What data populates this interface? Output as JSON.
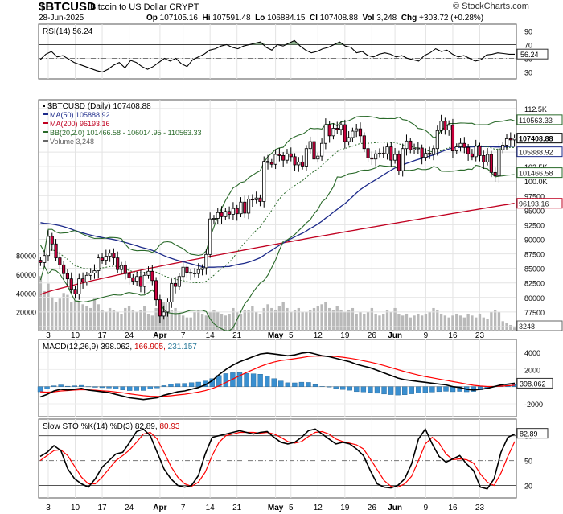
{
  "header": {
    "symbol": "$BTCUSD",
    "description": "Bitcoin to US Dollar  CRYPT",
    "date": "28-Jun-2025",
    "open_label": "Op",
    "open": "107105.16",
    "high_label": "Hi",
    "high": "107591.48",
    "low_label": "Lo",
    "low": "106884.15",
    "close_label": "Cl",
    "close": "107408.88",
    "volume_label": "Vol",
    "volume": "3,248",
    "change_label": "Chg",
    "change": "+303.72 (+0.28%)",
    "logo": "© StockCharts.com"
  },
  "colors": {
    "ma50": "#1c2a8a",
    "ma200": "#c00020",
    "bb": "#2a6a2a",
    "up": "#ffffff",
    "down": "#c8003c",
    "volume": "#b9b9b9",
    "macd_hist": "#3a8fd0",
    "signal": "#ff0000"
  },
  "chart_data": [
    {
      "type": "line",
      "panel": "rsi",
      "title": "RSI(14) 56.24",
      "ylim": [
        20,
        100
      ],
      "y_ticks": [
        "90",
        "70",
        "50",
        "30"
      ],
      "current_label": "56.24",
      "series": [
        {
          "name": "RSI(14)",
          "values": [
            48,
            56,
            60,
            52,
            54,
            49,
            44,
            41,
            38,
            35,
            32,
            30,
            34,
            40,
            44,
            36,
            47,
            44,
            38,
            34,
            38,
            44,
            50,
            46,
            50,
            42,
            38,
            48,
            52,
            56,
            62,
            64,
            68,
            70,
            66,
            64,
            68,
            70,
            72,
            74,
            66,
            62,
            70,
            68,
            72,
            76,
            68,
            62,
            58,
            60,
            64,
            66,
            70,
            74,
            68,
            66,
            58,
            60,
            54,
            52,
            56,
            58,
            56,
            52,
            54,
            50,
            48,
            46,
            54,
            58,
            64,
            60,
            62,
            56,
            52,
            54,
            50,
            46,
            48,
            55,
            56,
            58,
            57,
            56,
            56
          ]
        }
      ]
    },
    {
      "type": "candlestick",
      "panel": "price",
      "title": "$BTCUSD (Daily) 107408.88",
      "legend": [
        "$BTCUSD (Daily) 107408.88",
        "MA(50) 105888.92",
        "MA(200) 96193.16",
        "BB(20,2.0) 101466.58 - 106014.95 - 110563.33",
        "Volume 3,248"
      ],
      "ylim": [
        74300,
        114000
      ],
      "y_ticks": [
        "112.5K",
        "105.0K",
        "102.5K",
        "100.0K",
        "97500",
        "95000",
        "92500",
        "90000",
        "87500",
        "85000",
        "82500",
        "80000",
        "77500",
        "75000"
      ],
      "right_labels": [
        "110563.33",
        "107408.88",
        "105888.92",
        "101466.58",
        "96193.16",
        "3248"
      ],
      "x_tick_labels": [
        "3",
        "10",
        "17",
        "24",
        "Apr",
        "7",
        "14",
        "21",
        "May",
        "5",
        "12",
        "19",
        "26",
        "Jun",
        "9",
        "16",
        "23"
      ],
      "x_tick_dates": [
        "2025-03-03",
        "2025-03-10",
        "2025-03-17",
        "2025-03-24",
        "2025-04-01",
        "2025-04-07",
        "2025-04-14",
        "2025-04-21",
        "2025-05-01",
        "2025-05-05",
        "2025-05-12",
        "2025-05-19",
        "2025-05-26",
        "2025-06-01",
        "2025-06-09",
        "2025-06-16",
        "2025-06-23"
      ],
      "start_date": "2025-03-01",
      "close": [
        86000,
        87200,
        90500,
        89200,
        86800,
        85600,
        84100,
        83200,
        81400,
        80600,
        83200,
        82700,
        83800,
        84200,
        84600,
        86800,
        86400,
        87100,
        87600,
        86800,
        84800,
        85500,
        84100,
        83400,
        82800,
        83600,
        81900,
        83800,
        84500,
        82900,
        79600,
        76800,
        77500,
        79200,
        82400,
        81900,
        83600,
        85200,
        84300,
        84200,
        84100,
        84800,
        85100,
        87400,
        93500,
        93600,
        94600,
        93900,
        94800,
        94300,
        95300,
        94400,
        96400,
        94500,
        96900,
        96800,
        97100,
        96500,
        103400,
        103200,
        102900,
        104600,
        104400,
        103600,
        104700,
        104200,
        102800,
        103300,
        102600,
        105600,
        106800,
        103800,
        104300,
        106500,
        109700,
        107800,
        109100,
        108900,
        109700,
        106800,
        107500,
        108600,
        109000,
        107800,
        105600,
        104000,
        103800,
        104700,
        104800,
        104700,
        105900,
        103600,
        104600,
        101800,
        105600,
        106900,
        105400,
        105600,
        105700,
        104100,
        104800,
        104600,
        105600,
        108700,
        110300,
        108800,
        109600,
        105200,
        105900,
        106500,
        105800,
        104700,
        104200,
        106000,
        104400,
        103300,
        104600,
        101500,
        100900,
        105400,
        106200,
        107300,
        107100,
        107408
      ]
    },
    {
      "type": "line",
      "panel": "macd",
      "title": "MACD(12,26,9) 398.062, 166.905, 231.157",
      "ylim": [
        -3500,
        5500
      ],
      "y_ticks": [
        "4000",
        "2000",
        "-2000"
      ],
      "current_label": "398.062",
      "series": [
        {
          "name": "MACD",
          "values": [
            -1200,
            -900,
            -500,
            -300,
            -400,
            -300,
            -200,
            -400,
            -500,
            -600,
            -700,
            -900,
            -1100,
            -1300,
            -1400,
            -1500,
            -1400,
            -1300,
            -1000,
            -800,
            -600,
            -500,
            -300,
            -100,
            200,
            700,
            1400,
            2000,
            2500,
            2900,
            3200,
            3500,
            3800,
            3900,
            3800,
            3700,
            3600,
            3700,
            3900,
            4000,
            3800,
            3600,
            3500,
            3300,
            3100,
            2900,
            2600,
            2400,
            2200,
            1900,
            1600,
            1300,
            1000,
            800,
            700,
            600,
            500,
            400,
            300,
            200,
            0,
            -100,
            -300,
            -400,
            -300,
            -200,
            0,
            200,
            300,
            400
          ]
        },
        {
          "name": "Signal",
          "values": [
            -600,
            -650,
            -600,
            -500,
            -450,
            -400,
            -350,
            -380,
            -420,
            -480,
            -540,
            -620,
            -720,
            -840,
            -950,
            -1050,
            -1120,
            -1150,
            -1120,
            -1060,
            -970,
            -880,
            -760,
            -630,
            -460,
            -230,
            90,
            480,
            880,
            1270,
            1650,
            2000,
            2350,
            2640,
            2870,
            3040,
            3150,
            3260,
            3380,
            3510,
            3570,
            3580,
            3560,
            3510,
            3430,
            3320,
            3180,
            3020,
            2860,
            2670,
            2460,
            2230,
            1980,
            1750,
            1540,
            1350,
            1180,
            1030,
            880,
            740,
            590,
            450,
            300,
            160,
            70,
            20,
            20,
            60,
            110,
            170
          ]
        },
        {
          "name": "Histogram",
          "values": [
            -600,
            -250,
            100,
            200,
            50,
            100,
            150,
            -20,
            -80,
            -120,
            -160,
            -280,
            -380,
            -460,
            -450,
            -450,
            -280,
            -150,
            120,
            260,
            370,
            380,
            460,
            530,
            660,
            930,
            1310,
            1520,
            1620,
            1630,
            1550,
            1500,
            1450,
            1260,
            930,
            660,
            450,
            440,
            520,
            490,
            230,
            20,
            -60,
            -210,
            -330,
            -420,
            -580,
            -620,
            -660,
            -770,
            -860,
            -930,
            -980,
            -950,
            -840,
            -750,
            -680,
            -630,
            -580,
            -540,
            -590,
            -550,
            -600,
            -560,
            -370,
            -220,
            -20,
            140,
            190,
            230
          ]
        }
      ]
    },
    {
      "type": "line",
      "panel": "stochastic",
      "title": "Slow STO %K(14) %D(3) 82.89, 80.93",
      "ylim": [
        5,
        100
      ],
      "y_ticks": [
        "80",
        "50",
        "20"
      ],
      "current_label": "82.89",
      "series": [
        {
          "name": "%K",
          "values": [
            55,
            60,
            68,
            62,
            40,
            28,
            22,
            18,
            28,
            42,
            50,
            58,
            60,
            72,
            85,
            88,
            80,
            60,
            40,
            28,
            20,
            18,
            20,
            32,
            58,
            78,
            80,
            82,
            84,
            86,
            84,
            82,
            84,
            85,
            78,
            72,
            70,
            72,
            78,
            86,
            88,
            82,
            76,
            70,
            72,
            70,
            64,
            56,
            38,
            22,
            18,
            17,
            20,
            28,
            46,
            76,
            88,
            70,
            55,
            48,
            52,
            56,
            46,
            38,
            18,
            16,
            28,
            60,
            78,
            82
          ]
        },
        {
          "name": "%D",
          "values": [
            50,
            56,
            62,
            63,
            56,
            43,
            30,
            22,
            22,
            30,
            40,
            50,
            56,
            63,
            72,
            82,
            84,
            76,
            60,
            43,
            30,
            22,
            19,
            24,
            36,
            56,
            72,
            80,
            82,
            84,
            84,
            84,
            83,
            84,
            82,
            78,
            73,
            71,
            73,
            79,
            84,
            85,
            82,
            76,
            73,
            71,
            69,
            64,
            52,
            39,
            26,
            19,
            18,
            22,
            31,
            50,
            70,
            78,
            71,
            58,
            51,
            52,
            51,
            47,
            34,
            24,
            20,
            35,
            55,
            73
          ]
        }
      ]
    },
    {
      "type": "bar",
      "panel": "volume",
      "ylim": [
        0,
        95000
      ],
      "y_ticks": [
        "80000",
        "60000",
        "40000",
        "20000"
      ],
      "current_label": "3248",
      "values": [
        58000,
        42000,
        50000,
        36000,
        30000,
        34000,
        40000,
        38000,
        30000,
        32000,
        30000,
        28000,
        26000,
        24000,
        34000,
        28000,
        22000,
        20000,
        24000,
        22000,
        20000,
        18000,
        24000,
        26000,
        22000,
        20000,
        22000,
        26000,
        18000,
        16000,
        24000,
        30000,
        30000,
        20000,
        22000,
        24000,
        18000,
        16000,
        14000,
        14000,
        20000,
        22000,
        18000,
        16000,
        20000,
        22000,
        20000,
        18000,
        16000,
        18000,
        24000,
        20000,
        18000,
        22000,
        22000,
        26000,
        20000,
        18000,
        24000,
        28000,
        24000,
        22000,
        26000,
        30000,
        24000,
        20000,
        22000,
        24000,
        20000,
        20000,
        22000,
        24000,
        26000,
        28000,
        30000,
        24000,
        22000,
        26000,
        22000,
        20000,
        22000,
        24000,
        18000,
        20000,
        18000,
        20000,
        24000,
        18000,
        16000,
        18000,
        22000,
        20000,
        24000,
        18000,
        16000,
        18000,
        14000,
        16000,
        18000,
        16000,
        18000,
        20000,
        24000,
        22000,
        18000,
        16000,
        14000,
        16000,
        18000,
        16000,
        14000,
        18000,
        16000,
        14000,
        18000,
        14000,
        12000,
        20000,
        22000,
        20000,
        10000,
        8000,
        6000,
        3248
      ]
    }
  ]
}
